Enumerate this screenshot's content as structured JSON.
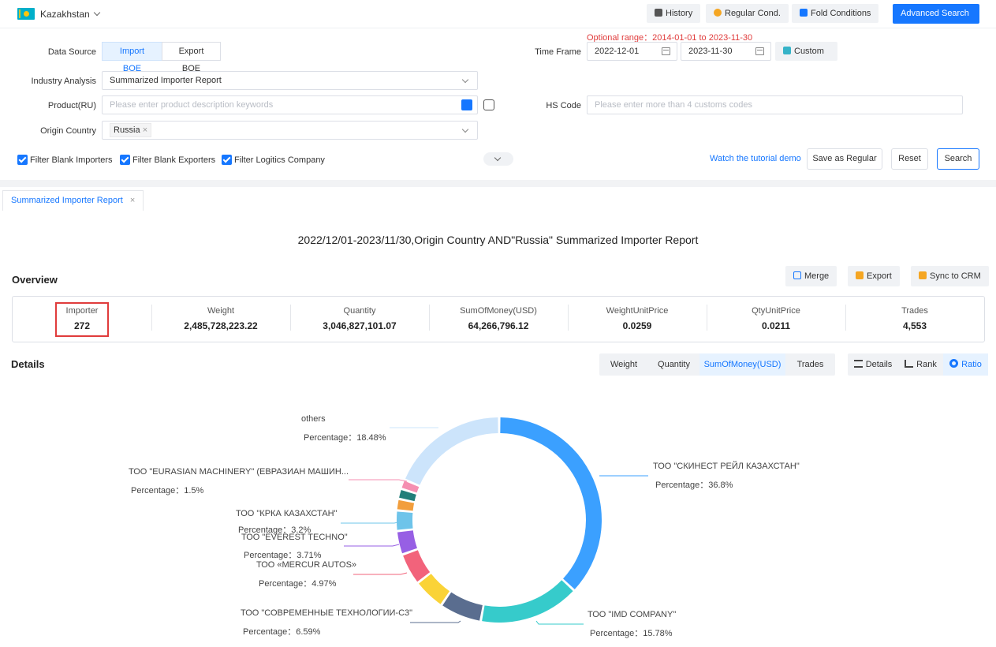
{
  "topbar": {
    "country": "Kazakhstan",
    "history": "History",
    "regular_cond": "Regular Cond.",
    "fold_conditions": "Fold Conditions",
    "advanced_search": "Advanced Search"
  },
  "filters": {
    "optional_range": "Optional range：2014-01-01 to 2023-11-30",
    "data_source_label": "Data Source",
    "import_boe": "Import BOE",
    "export_boe": "Export BOE",
    "time_frame_label": "Time Frame",
    "date_from": "2022-12-01",
    "date_to": "2023-11-30",
    "custom": "Custom",
    "industry_label": "Industry Analysis",
    "industry_value": "Summarized Importer Report",
    "product_label": "Product(RU)",
    "product_placeholder": "Please enter product description keywords",
    "hs_label": "HS Code",
    "hs_placeholder": "Please enter more than 4 customs codes",
    "origin_label": "Origin Country",
    "origin_tag": "Russia",
    "filter_importers": "Filter Blank Importers",
    "filter_exporters": "Filter Blank Exporters",
    "filter_logistics": "Filter Logitics Company",
    "tutorial": "Watch the tutorial demo",
    "save_regular": "Save as Regular",
    "reset": "Reset",
    "search": "Search"
  },
  "tabs": {
    "report_tab": "Summarized Importer Report"
  },
  "report": {
    "title": "2022/12/01-2023/11/30,Origin Country AND\"Russia\" Summarized Importer Report",
    "overview": "Overview",
    "merge": "Merge",
    "export": "Export",
    "sync_crm": "Sync to CRM",
    "stats": [
      {
        "key": "Importer",
        "value": "272"
      },
      {
        "key": "Weight",
        "value": "2,485,728,223.22"
      },
      {
        "key": "Quantity",
        "value": "3,046,827,101.07"
      },
      {
        "key": "SumOfMoney(USD)",
        "value": "64,266,796.12"
      },
      {
        "key": "WeightUnitPrice",
        "value": "0.0259"
      },
      {
        "key": "QtyUnitPrice",
        "value": "0.0211"
      },
      {
        "key": "Trades",
        "value": "4,553"
      }
    ],
    "details": "Details",
    "metric_tabs": [
      "Weight",
      "Quantity",
      "SumOfMoney(USD)",
      "Trades"
    ],
    "view_tabs": [
      "Details",
      "Rank",
      "Ratio"
    ]
  },
  "chart_data": {
    "type": "pie",
    "slices": [
      {
        "name": "ТОО \"СКИНЕСТ РЕЙЛ КАЗАХСТАН\"",
        "label": "Percentage：36.8%",
        "value": 36.8,
        "color": "#3ba0ff"
      },
      {
        "name": "ТОО \"IMD COMPANY\"",
        "label": "Percentage：15.78%",
        "value": 15.78,
        "color": "#36cbcb"
      },
      {
        "name": "ТОО \"СОВРЕМЕННЫЕ ТЕХНОЛОГИИ-С3\"",
        "label": "Percentage：6.59%",
        "value": 6.59,
        "color": "#5a6d8f"
      },
      {
        "name": "",
        "label": "",
        "value": 5.0,
        "color": "#fad337"
      },
      {
        "name": "ТОО «MERCUR AUTOS»",
        "label": "Percentage：4.97%",
        "value": 4.97,
        "color": "#f2637b"
      },
      {
        "name": "ТОО \"EVEREST TECHNO\"",
        "label": "Percentage：3.71%",
        "value": 3.71,
        "color": "#975fe4"
      },
      {
        "name": "ТОО \"КРКА КАЗАХСТАН\"",
        "label": "Percentage：3.2%",
        "value": 3.2,
        "color": "#6ec4ea"
      },
      {
        "name": "",
        "label": "",
        "value": 1.8,
        "color": "#f29e3d"
      },
      {
        "name": "",
        "label": "",
        "value": 1.6,
        "color": "#227f7a"
      },
      {
        "name": "ТОО \"EURASIAN MACHINERY\" (ЕВРАЗИАН МАШИН...",
        "label": "Percentage：1.5%",
        "value": 1.5,
        "color": "#f58fb1"
      },
      {
        "name": "others",
        "label": "Percentage：18.48%",
        "value": 18.48,
        "color": "#cce4fb"
      }
    ]
  }
}
